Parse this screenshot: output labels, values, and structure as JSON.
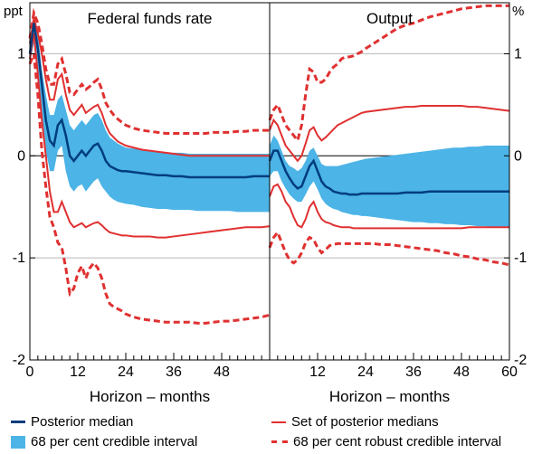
{
  "chart_data": [
    {
      "type": "line",
      "title": "Federal funds rate",
      "xlabel": "Horizon – months",
      "ylabel": "ppt",
      "xlim": [
        0,
        60
      ],
      "ylim": [
        -2,
        1.5
      ],
      "xticks": [
        0,
        12,
        24,
        36,
        48
      ],
      "yticks": [
        -2,
        -1,
        0,
        1
      ],
      "grid": true,
      "x": [
        0,
        1,
        2,
        3,
        4,
        5,
        6,
        7,
        8,
        9,
        10,
        11,
        12,
        13,
        14,
        15,
        16,
        17,
        18,
        19,
        20,
        21,
        22,
        23,
        24,
        26,
        28,
        30,
        32,
        34,
        36,
        38,
        40,
        42,
        44,
        46,
        48,
        50,
        52,
        54,
        56,
        58,
        60
      ],
      "series": [
        {
          "name": "Posterior median",
          "values": [
            1.0,
            1.3,
            1.05,
            0.7,
            0.35,
            0.15,
            0.1,
            0.3,
            0.35,
            0.2,
            0.0,
            -0.05,
            0.0,
            0.05,
            0.0,
            0.05,
            0.1,
            0.12,
            0.05,
            -0.05,
            -0.1,
            -0.12,
            -0.14,
            -0.15,
            -0.15,
            -0.16,
            -0.17,
            -0.18,
            -0.19,
            -0.19,
            -0.2,
            -0.2,
            -0.21,
            -0.21,
            -0.21,
            -0.21,
            -0.21,
            -0.21,
            -0.21,
            -0.21,
            -0.2,
            -0.2,
            -0.2
          ]
        },
        {
          "name": "68 per cent credible interval",
          "lower": [
            0.9,
            1.1,
            0.75,
            0.35,
            0.05,
            -0.15,
            -0.15,
            0.05,
            0.1,
            -0.15,
            -0.3,
            -0.35,
            -0.3,
            -0.28,
            -0.35,
            -0.3,
            -0.25,
            -0.22,
            -0.3,
            -0.35,
            -0.4,
            -0.43,
            -0.45,
            -0.46,
            -0.47,
            -0.48,
            -0.5,
            -0.51,
            -0.52,
            -0.52,
            -0.53,
            -0.53,
            -0.53,
            -0.54,
            -0.54,
            -0.54,
            -0.54,
            -0.54,
            -0.55,
            -0.55,
            -0.55,
            -0.55,
            -0.55
          ],
          "upper": [
            1.1,
            1.4,
            1.2,
            0.85,
            0.6,
            0.4,
            0.4,
            0.55,
            0.6,
            0.45,
            0.3,
            0.25,
            0.3,
            0.35,
            0.3,
            0.35,
            0.4,
            0.42,
            0.35,
            0.25,
            0.18,
            0.15,
            0.12,
            0.1,
            0.08,
            0.07,
            0.06,
            0.05,
            0.04,
            0.03,
            0.03,
            0.03,
            0.02,
            0.02,
            0.02,
            0.02,
            0.02,
            0.02,
            0.02,
            0.02,
            0.02,
            0.02,
            0.02
          ]
        },
        {
          "name": "Set of posterior medians",
          "lower": [
            0.95,
            1.2,
            0.8,
            0.35,
            0.0,
            -0.35,
            -0.55,
            -0.55,
            -0.45,
            -0.55,
            -0.65,
            -0.7,
            -0.68,
            -0.66,
            -0.7,
            -0.68,
            -0.66,
            -0.65,
            -0.68,
            -0.72,
            -0.75,
            -0.76,
            -0.77,
            -0.78,
            -0.78,
            -0.79,
            -0.79,
            -0.79,
            -0.8,
            -0.8,
            -0.79,
            -0.78,
            -0.77,
            -0.76,
            -0.75,
            -0.74,
            -0.73,
            -0.72,
            -0.71,
            -0.7,
            -0.7,
            -0.7,
            -0.69
          ],
          "upper": [
            1.1,
            1.35,
            1.2,
            1.0,
            0.75,
            0.55,
            0.55,
            0.75,
            0.8,
            0.6,
            0.45,
            0.4,
            0.45,
            0.5,
            0.42,
            0.45,
            0.48,
            0.5,
            0.42,
            0.3,
            0.22,
            0.18,
            0.14,
            0.12,
            0.1,
            0.08,
            0.06,
            0.05,
            0.04,
            0.03,
            0.02,
            0.01,
            0.0,
            0.0,
            0.0,
            0.0,
            0.0,
            0.0,
            0.0,
            0.0,
            0.0,
            0.0,
            0.0
          ]
        },
        {
          "name": "68 per cent robust credible interval",
          "lower": [
            0.9,
            1.0,
            0.6,
            0.05,
            -0.3,
            -0.6,
            -0.7,
            -0.85,
            -0.9,
            -1.1,
            -1.35,
            -1.3,
            -1.15,
            -1.08,
            -1.2,
            -1.1,
            -1.05,
            -1.1,
            -1.2,
            -1.35,
            -1.45,
            -1.48,
            -1.5,
            -1.52,
            -1.55,
            -1.58,
            -1.6,
            -1.61,
            -1.62,
            -1.63,
            -1.63,
            -1.63,
            -1.63,
            -1.64,
            -1.64,
            -1.63,
            -1.62,
            -1.62,
            -1.61,
            -1.6,
            -1.59,
            -1.58,
            -1.56
          ],
          "upper": [
            1.15,
            1.4,
            1.3,
            1.1,
            0.85,
            0.7,
            0.7,
            0.9,
            0.95,
            0.8,
            0.62,
            0.6,
            0.65,
            0.7,
            0.65,
            0.68,
            0.72,
            0.75,
            0.65,
            0.52,
            0.45,
            0.4,
            0.36,
            0.33,
            0.3,
            0.27,
            0.25,
            0.24,
            0.23,
            0.22,
            0.22,
            0.22,
            0.22,
            0.22,
            0.22,
            0.23,
            0.23,
            0.23,
            0.24,
            0.24,
            0.25,
            0.25,
            0.25
          ]
        }
      ]
    },
    {
      "type": "line",
      "title": "Output",
      "xlabel": "Horizon – months",
      "ylabel": "%",
      "xlim": [
        0,
        60
      ],
      "ylim": [
        -2,
        1.5
      ],
      "xticks": [
        12,
        24,
        36,
        48,
        60
      ],
      "yticks": [
        -2,
        -1,
        0,
        1
      ],
      "grid": true,
      "x": [
        0,
        1,
        2,
        3,
        4,
        5,
        6,
        7,
        8,
        9,
        10,
        11,
        12,
        13,
        14,
        15,
        16,
        17,
        18,
        19,
        20,
        21,
        22,
        23,
        24,
        26,
        28,
        30,
        32,
        34,
        36,
        38,
        40,
        42,
        44,
        46,
        48,
        50,
        52,
        54,
        56,
        58,
        60
      ],
      "series": [
        {
          "name": "Posterior median",
          "values": [
            -0.05,
            0.05,
            0.05,
            -0.05,
            -0.15,
            -0.22,
            -0.28,
            -0.32,
            -0.3,
            -0.2,
            -0.1,
            -0.05,
            -0.15,
            -0.25,
            -0.3,
            -0.32,
            -0.35,
            -0.36,
            -0.37,
            -0.37,
            -0.38,
            -0.38,
            -0.38,
            -0.37,
            -0.37,
            -0.37,
            -0.37,
            -0.37,
            -0.37,
            -0.36,
            -0.36,
            -0.36,
            -0.35,
            -0.35,
            -0.35,
            -0.35,
            -0.35,
            -0.35,
            -0.35,
            -0.35,
            -0.35,
            -0.35,
            -0.35
          ]
        },
        {
          "name": "68 per cent credible interval",
          "lower": [
            -0.2,
            -0.15,
            -0.15,
            -0.25,
            -0.32,
            -0.38,
            -0.42,
            -0.45,
            -0.45,
            -0.38,
            -0.3,
            -0.25,
            -0.33,
            -0.42,
            -0.47,
            -0.5,
            -0.52,
            -0.53,
            -0.55,
            -0.56,
            -0.57,
            -0.58,
            -0.58,
            -0.59,
            -0.59,
            -0.6,
            -0.61,
            -0.62,
            -0.63,
            -0.64,
            -0.65,
            -0.65,
            -0.66,
            -0.66,
            -0.67,
            -0.67,
            -0.68,
            -0.68,
            -0.69,
            -0.69,
            -0.7,
            -0.7,
            -0.71
          ],
          "upper": [
            0.1,
            0.2,
            0.15,
            0.05,
            -0.05,
            -0.1,
            -0.12,
            -0.15,
            -0.12,
            -0.05,
            0.05,
            0.08,
            0.0,
            -0.08,
            -0.1,
            -0.1,
            -0.1,
            -0.1,
            -0.09,
            -0.08,
            -0.07,
            -0.06,
            -0.05,
            -0.04,
            -0.03,
            -0.02,
            -0.01,
            0.0,
            0.01,
            0.02,
            0.03,
            0.04,
            0.05,
            0.06,
            0.07,
            0.08,
            0.08,
            0.09,
            0.09,
            0.1,
            0.1,
            0.1,
            0.1
          ]
        },
        {
          "name": "Set of posterior medians",
          "lower": [
            -0.4,
            -0.3,
            -0.28,
            -0.35,
            -0.45,
            -0.5,
            -0.6,
            -0.68,
            -0.7,
            -0.62,
            -0.5,
            -0.45,
            -0.55,
            -0.62,
            -0.65,
            -0.66,
            -0.68,
            -0.69,
            -0.7,
            -0.7,
            -0.7,
            -0.71,
            -0.71,
            -0.71,
            -0.71,
            -0.71,
            -0.71,
            -0.71,
            -0.71,
            -0.71,
            -0.71,
            -0.71,
            -0.71,
            -0.71,
            -0.71,
            -0.71,
            -0.71,
            -0.7,
            -0.7,
            -0.7,
            -0.7,
            -0.7,
            -0.7
          ],
          "upper": [
            0.25,
            0.35,
            0.3,
            0.2,
            0.1,
            0.05,
            0.0,
            -0.05,
            0.0,
            0.12,
            0.25,
            0.28,
            0.2,
            0.15,
            0.18,
            0.22,
            0.26,
            0.3,
            0.32,
            0.34,
            0.36,
            0.38,
            0.4,
            0.42,
            0.43,
            0.44,
            0.45,
            0.46,
            0.47,
            0.48,
            0.48,
            0.49,
            0.49,
            0.49,
            0.49,
            0.49,
            0.49,
            0.48,
            0.48,
            0.47,
            0.46,
            0.45,
            0.44
          ]
        },
        {
          "name": "68 per cent robust credible interval",
          "lower": [
            -0.9,
            -0.8,
            -0.75,
            -0.85,
            -0.95,
            -1.02,
            -1.05,
            -1.02,
            -0.95,
            -0.85,
            -0.8,
            -0.82,
            -0.9,
            -0.95,
            -0.92,
            -0.88,
            -0.87,
            -0.86,
            -0.86,
            -0.86,
            -0.86,
            -0.86,
            -0.86,
            -0.86,
            -0.86,
            -0.86,
            -0.87,
            -0.87,
            -0.88,
            -0.89,
            -0.9,
            -0.91,
            -0.92,
            -0.93,
            -0.95,
            -0.96,
            -0.98,
            -0.99,
            -1.01,
            -1.02,
            -1.04,
            -1.05,
            -1.07
          ],
          "upper": [
            0.35,
            0.45,
            0.5,
            0.4,
            0.3,
            0.25,
            0.2,
            0.15,
            0.3,
            0.6,
            0.85,
            0.82,
            0.72,
            0.72,
            0.75,
            0.82,
            0.87,
            0.9,
            0.95,
            0.97,
            0.97,
            0.98,
            1.0,
            1.02,
            1.05,
            1.1,
            1.15,
            1.2,
            1.25,
            1.28,
            1.3,
            1.33,
            1.36,
            1.38,
            1.4,
            1.42,
            1.44,
            1.45,
            1.46,
            1.47,
            1.47,
            1.47,
            1.47
          ]
        }
      ]
    }
  ],
  "legend": [
    {
      "label": "Posterior median",
      "style": "solid",
      "color": "#003d7d"
    },
    {
      "label": "Set of posterior medians",
      "style": "solid",
      "color": "#e03030"
    },
    {
      "label": "68 per cent credible interval",
      "style": "fill",
      "color": "#4cb4e6"
    },
    {
      "label": "68 per cent robust credible interval",
      "style": "dashed",
      "color": "#e03030"
    }
  ],
  "colors": {
    "median": "#003d7d",
    "band": "#4cb4e6",
    "set": "#e03030",
    "robust": "#e03030",
    "grid": "#b8b8b8"
  }
}
